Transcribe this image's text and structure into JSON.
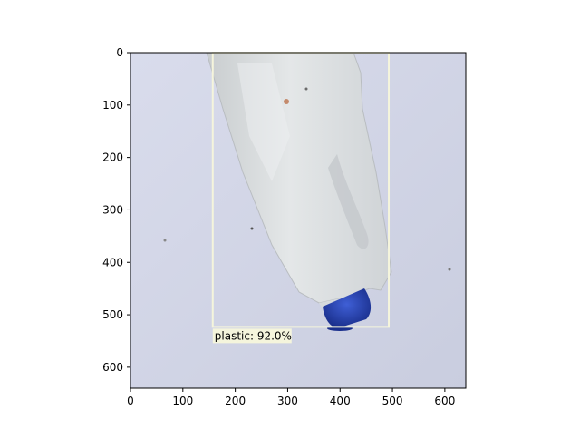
{
  "figure": {
    "x_ticks": [
      "0",
      "100",
      "200",
      "300",
      "400",
      "500",
      "600"
    ],
    "y_ticks": [
      "0",
      "100",
      "200",
      "300",
      "400",
      "500",
      "600"
    ],
    "xlim": [
      0,
      640
    ],
    "ylim": [
      640,
      0
    ]
  },
  "detection": {
    "label": "plastic: 92.0%",
    "box": {
      "x_min": 157,
      "y_min": 0,
      "x_max": 493,
      "y_max": 523
    },
    "box_color": "#f5f5dc"
  },
  "photo": {
    "background_color": "#d3d6e6",
    "object_color": "#e3e6e8",
    "cap_color": "#2c46b8"
  }
}
